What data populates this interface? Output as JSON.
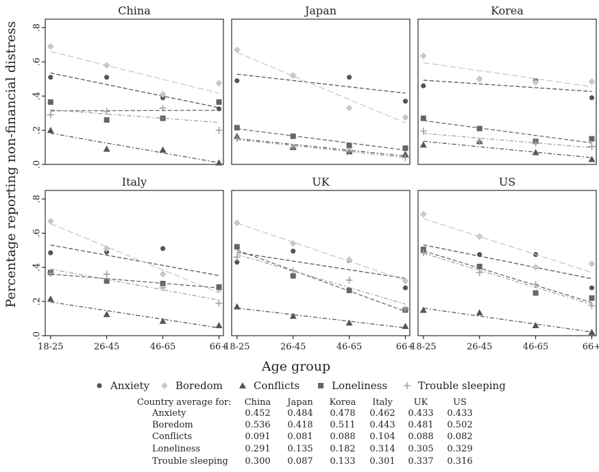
{
  "chart_data": {
    "type": "scatter",
    "layout": "small-multiples",
    "ylabel": "Percentage reporting non-financial distress",
    "xlabel": "Age group",
    "categories": [
      "18-25",
      "26-45",
      "46-65",
      "66+"
    ],
    "ylim": [
      0,
      0.85
    ],
    "yticks": [
      0,
      0.2,
      0.4,
      0.6,
      0.8
    ],
    "ytick_labels": [
      ".0",
      ".2",
      ".4",
      ".6",
      ".8"
    ],
    "grid": false,
    "legend_position": "bottom",
    "series_styles": [
      {
        "name": "Anxiety",
        "marker": "circle",
        "color": "#555555",
        "dash": "6,3"
      },
      {
        "name": "Boredom",
        "marker": "diamond",
        "color": "#c8c8c8",
        "dash": "9,4"
      },
      {
        "name": "Conflicts",
        "marker": "triangle",
        "color": "#555555",
        "dash": "6,3,2,3"
      },
      {
        "name": "Loneliness",
        "marker": "square",
        "color": "#666666",
        "dash": "6,3"
      },
      {
        "name": "Trouble sleeping",
        "marker": "plus",
        "color": "#a0a0a0",
        "dash": "6,3,2,3"
      }
    ],
    "panels": [
      {
        "title": "China",
        "series": [
          {
            "name": "Anxiety",
            "values": [
              0.51,
              0.51,
              0.39,
              0.325
            ]
          },
          {
            "name": "Boredom",
            "values": [
              0.69,
              0.58,
              0.41,
              0.475
            ]
          },
          {
            "name": "Conflicts",
            "values": [
              0.2,
              0.09,
              0.085,
              0.01
            ]
          },
          {
            "name": "Loneliness",
            "values": [
              0.365,
              0.26,
              0.27,
              0.365
            ]
          },
          {
            "name": "Trouble sleeping",
            "values": [
              0.29,
              0.31,
              0.33,
              0.2
            ]
          }
        ]
      },
      {
        "title": "Japan",
        "series": [
          {
            "name": "Anxiety",
            "values": [
              0.49,
              0.52,
              0.51,
              0.37
            ]
          },
          {
            "name": "Boredom",
            "values": [
              0.67,
              0.52,
              0.33,
              0.275
            ]
          },
          {
            "name": "Conflicts",
            "values": [
              0.165,
              0.1,
              0.075,
              0.06
            ]
          },
          {
            "name": "Loneliness",
            "values": [
              0.215,
              0.165,
              0.11,
              0.095
            ]
          },
          {
            "name": "Trouble sleeping",
            "values": [
              0.15,
              0.1,
              0.08,
              0.04
            ]
          }
        ]
      },
      {
        "title": "Korea",
        "series": [
          {
            "name": "Anxiety",
            "values": [
              0.46,
              0.5,
              0.49,
              0.39
            ]
          },
          {
            "name": "Boredom",
            "values": [
              0.635,
              0.5,
              0.48,
              0.485
            ]
          },
          {
            "name": "Conflicts",
            "values": [
              0.115,
              0.135,
              0.07,
              0.03
            ]
          },
          {
            "name": "Loneliness",
            "values": [
              0.27,
              0.21,
              0.135,
              0.15
            ]
          },
          {
            "name": "Trouble sleeping",
            "values": [
              0.195,
              0.135,
              0.125,
              0.105
            ]
          }
        ]
      },
      {
        "title": "Italy",
        "series": [
          {
            "name": "Anxiety",
            "values": [
              0.485,
              0.49,
              0.51,
              0.28
            ]
          },
          {
            "name": "Boredom",
            "values": [
              0.67,
              0.51,
              0.36,
              0.27
            ]
          },
          {
            "name": "Conflicts",
            "values": [
              0.215,
              0.125,
              0.085,
              0.06
            ]
          },
          {
            "name": "Loneliness",
            "values": [
              0.37,
              0.32,
              0.305,
              0.285
            ]
          },
          {
            "name": "Trouble sleeping",
            "values": [
              0.365,
              0.36,
              0.28,
              0.19
            ]
          }
        ]
      },
      {
        "title": "UK",
        "series": [
          {
            "name": "Anxiety",
            "values": [
              0.43,
              0.495,
              0.44,
              0.28
            ]
          },
          {
            "name": "Boredom",
            "values": [
              0.66,
              0.54,
              0.445,
              0.32
            ]
          },
          {
            "name": "Conflicts",
            "values": [
              0.17,
              0.115,
              0.075,
              0.055
            ]
          },
          {
            "name": "Loneliness",
            "values": [
              0.52,
              0.35,
              0.265,
              0.15
            ]
          },
          {
            "name": "Trouble sleeping",
            "values": [
              0.46,
              0.38,
              0.325,
              0.155
            ]
          }
        ]
      },
      {
        "title": "US",
        "series": [
          {
            "name": "Anxiety",
            "values": [
              0.5,
              0.475,
              0.475,
              0.28
            ]
          },
          {
            "name": "Boredom",
            "values": [
              0.71,
              0.58,
              0.4,
              0.42
            ]
          },
          {
            "name": "Conflicts",
            "values": [
              0.15,
              0.135,
              0.06,
              0.02
            ]
          },
          {
            "name": "Loneliness",
            "values": [
              0.505,
              0.405,
              0.25,
              0.22
            ]
          },
          {
            "name": "Trouble sleeping",
            "values": [
              0.485,
              0.37,
              0.3,
              0.175
            ]
          }
        ]
      }
    ],
    "legend": [
      "Anxiety",
      "Boredom",
      "Conflicts",
      "Loneliness",
      "Trouble sleeping"
    ],
    "country_average_table": {
      "row_header": "Country average for:",
      "columns": [
        "China",
        "Japan",
        "Korea",
        "Italy",
        "UK",
        "US"
      ],
      "rows": [
        {
          "label": "Anxiety",
          "values": [
            "0.452",
            "0.484",
            "0.478",
            "0.462",
            "0.433",
            "0.433"
          ]
        },
        {
          "label": "Boredom",
          "values": [
            "0.536",
            "0.418",
            "0.511",
            "0.443",
            "0.481",
            "0.502"
          ]
        },
        {
          "label": "Conflicts",
          "values": [
            "0.091",
            "0.081",
            "0.088",
            "0.104",
            "0.088",
            "0.082"
          ]
        },
        {
          "label": "Loneliness",
          "values": [
            "0.291",
            "0.135",
            "0.182",
            "0.314",
            "0.305",
            "0.329"
          ]
        },
        {
          "label": "Trouble sleeping",
          "values": [
            "0.300",
            "0.087",
            "0.133",
            "0.301",
            "0.337",
            "0.316"
          ]
        }
      ]
    }
  }
}
